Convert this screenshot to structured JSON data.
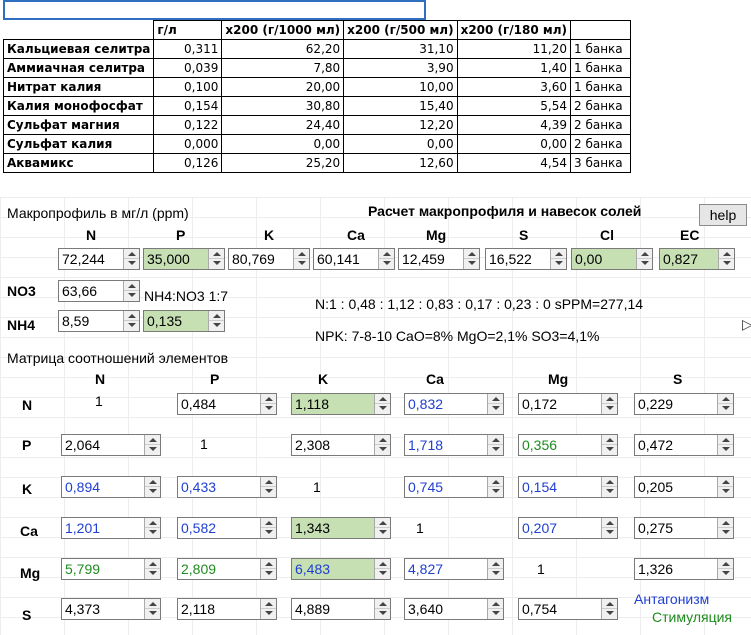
{
  "sheet": {
    "headers": [
      "",
      "г/л",
      "x200 (г/1000 мл)",
      "x200 (г/500 мл)",
      "x200 (г/180 мл)",
      ""
    ],
    "rows": [
      {
        "name": "Кальциевая селитра",
        "gl": "0,311",
        "g1000": "62,20",
        "g500": "31,10",
        "g180": "11,20",
        "jar": "1 банка"
      },
      {
        "name": "Аммиачная селитра",
        "gl": "0,039",
        "g1000": "7,80",
        "g500": "3,90",
        "g180": "1,40",
        "jar": "1 банка"
      },
      {
        "name": "Нитрат калия",
        "gl": "0,100",
        "g1000": "20,00",
        "g500": "10,00",
        "g180": "3,60",
        "jar": "1 банка"
      },
      {
        "name": "Калия монофосфат",
        "gl": "0,154",
        "g1000": "30,80",
        "g500": "15,40",
        "g180": "5,54",
        "jar": "2 банка"
      },
      {
        "name": "Сульфат магния",
        "gl": "0,122",
        "g1000": "24,40",
        "g500": "12,20",
        "g180": "4,39",
        "jar": "2 банка"
      },
      {
        "name": "Сульфат калия",
        "gl": "0,000",
        "g1000": "0,00",
        "g500": "0,00",
        "g180": "0,00",
        "jar": "2 банка"
      },
      {
        "name": "Аквамикс",
        "gl": "0,126",
        "g1000": "25,20",
        "g500": "12,60",
        "g180": "4,54",
        "jar": "3 банка"
      }
    ]
  },
  "panel": {
    "macro_label": "Макропрофиль в мг/л (ppm)",
    "title": "Расчет макропрофиля и навесок солей",
    "help_label": "help",
    "macro_headers": [
      "N",
      "P",
      "K",
      "Ca",
      "Mg",
      "S",
      "Cl",
      "EC"
    ],
    "macro_values": [
      "72,244",
      "35,000",
      "80,769",
      "60,141",
      "12,459",
      "16,522",
      "0,00",
      "0,827"
    ],
    "no3_label": "NO3",
    "no3_value": "63,66",
    "nh4_label": "NH4",
    "nh4_value": "8,59",
    "ratio_label": "NH4:NO3 1:7",
    "ratio_value": "0,135",
    "ratios_text": "N:1 : 0,48 : 1,12 : 0,83 : 0,17 : 0,23 : 0 sPPM=277,14",
    "npk_text": "NPK: 7-8-10 CaO=8% MgO=2,1% SO3=4,1%",
    "matrix_label": "Матрица соотношений элементов",
    "matrix_cols": [
      "N",
      "P",
      "K",
      "Ca",
      "Mg",
      "S"
    ],
    "matrix_rows": [
      "N",
      "P",
      "K",
      "Ca",
      "Mg",
      "S"
    ],
    "matrix": [
      [
        "1",
        "0,484",
        "1,118",
        "0,832",
        "0,172",
        "0,229"
      ],
      [
        "2,064",
        "1",
        "2,308",
        "1,718",
        "0,356",
        "0,472"
      ],
      [
        "0,894",
        "0,433",
        "1",
        "0,745",
        "0,154",
        "0,205"
      ],
      [
        "1,201",
        "0,582",
        "1,343",
        "1",
        "0,207",
        "0,275"
      ],
      [
        "5,799",
        "2,809",
        "6,483",
        "4,827",
        "1",
        "1,326"
      ],
      [
        "4,373",
        "2,118",
        "4,889",
        "3,640",
        "0,754",
        ""
      ]
    ],
    "legend_antagonism": "Антагонизм",
    "legend_stimulation": "Стимуляция",
    "colors": {
      "antagonism": "#1f3fd1",
      "stimulation": "#1f8c1f",
      "highlight": "#c6e0b4"
    }
  }
}
